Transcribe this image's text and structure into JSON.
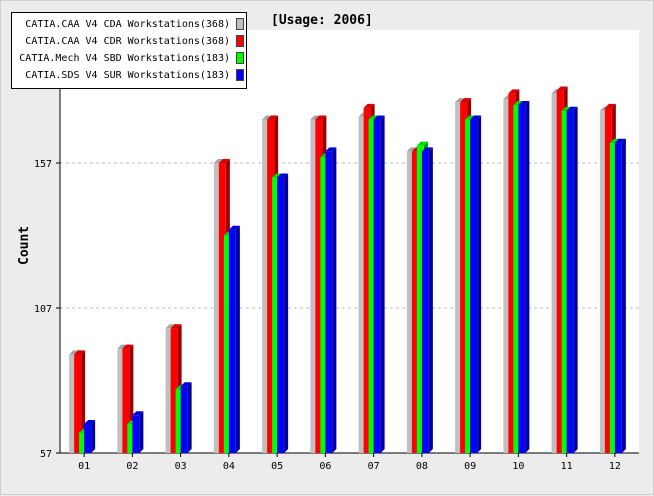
{
  "chart_data": {
    "type": "bar",
    "title": "[Usage: 2006]",
    "xlabel": "",
    "ylabel": "Count",
    "ylim": [
      57,
      157
    ],
    "y_ticks": [
      57,
      107,
      157
    ],
    "grid": true,
    "legend_position": "top-left",
    "categories": [
      "01",
      "02",
      "03",
      "04",
      "05",
      "06",
      "07",
      "08",
      "09",
      "10",
      "11",
      "12"
    ],
    "series": [
      {
        "name": "CATIA.CAA V4 CDA Workstations(368)",
        "color": "#c0c0c0",
        "values": [
          91,
          93,
          100,
          157,
          172,
          172,
          173,
          161,
          178,
          179,
          181,
          175
        ]
      },
      {
        "name": "CATIA.CAA V4 CDR Workstations(368)",
        "color": "#ff0000",
        "values": [
          91,
          93,
          100,
          157,
          172,
          172,
          176,
          161,
          178,
          181,
          182,
          176
        ]
      },
      {
        "name": "CATIA.Mech V4 SBD Workstations(183)",
        "color": "#00ff00",
        "values": [
          64,
          67,
          79,
          132,
          152,
          159,
          172,
          163,
          172,
          177,
          175,
          164
        ]
      },
      {
        "name": "CATIA.SDS V4 SUR Workstations(183)",
        "color": "#0000ff",
        "values": [
          67,
          70,
          80,
          134,
          152,
          161,
          172,
          161,
          172,
          177,
          175,
          164
        ]
      }
    ]
  }
}
